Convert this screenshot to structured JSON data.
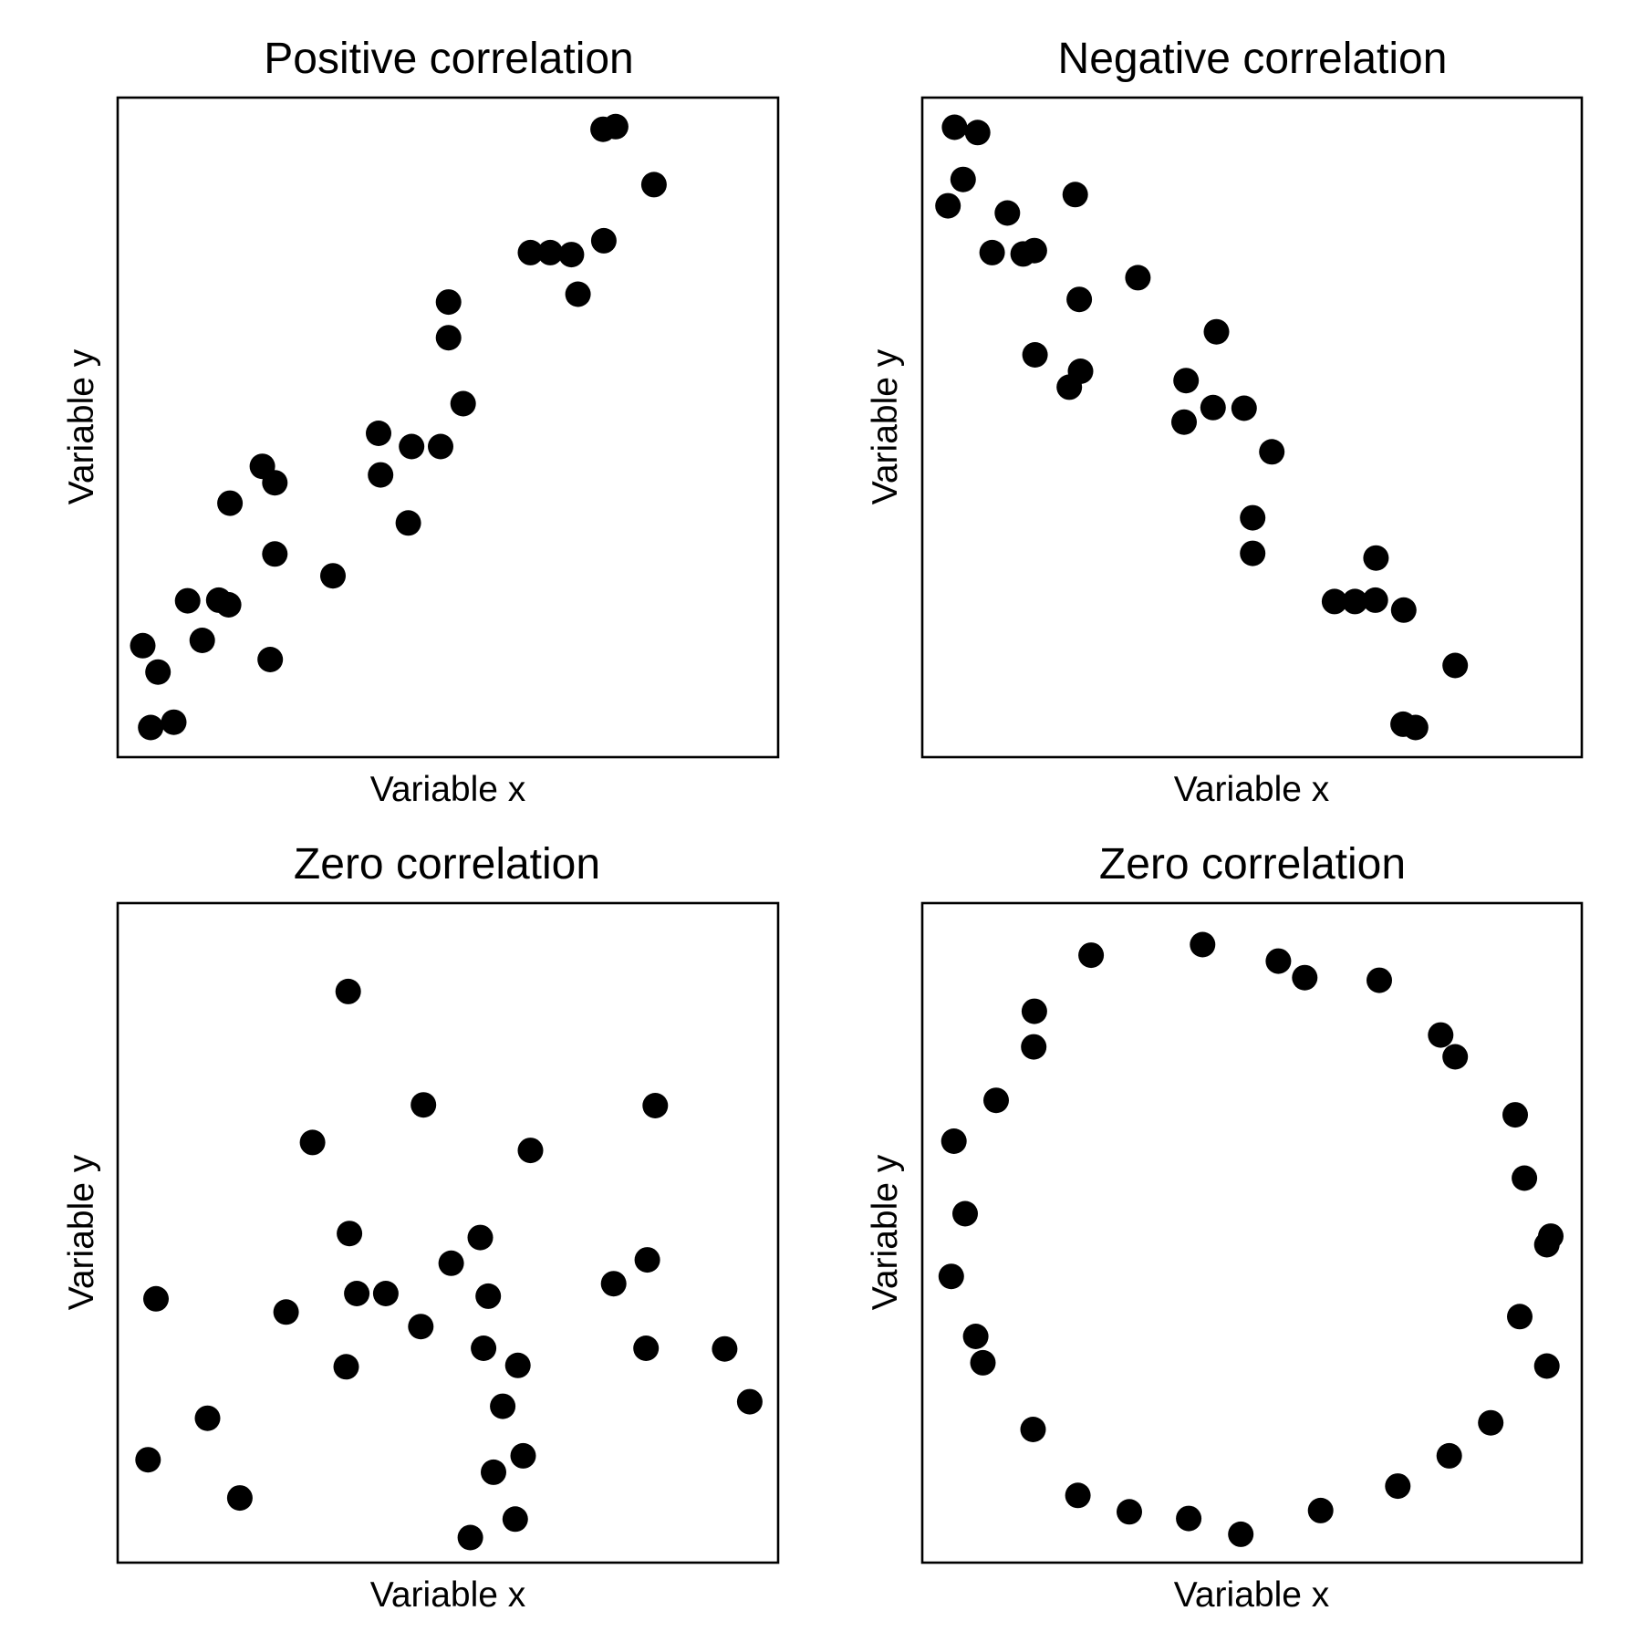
{
  "chart_data": [
    {
      "type": "scatter",
      "title": "Positive correlation",
      "xlabel": "Variable x",
      "ylabel": "Variable y",
      "xlim": [
        0,
        100
      ],
      "ylim": [
        0,
        100
      ],
      "grid": false,
      "ticks": false,
      "marker_color": "#000000",
      "points": [
        [
          3.8,
          16.9
        ],
        [
          6.1,
          12.9
        ],
        [
          5.0,
          4.5
        ],
        [
          8.5,
          5.3
        ],
        [
          10.6,
          23.7
        ],
        [
          12.8,
          17.7
        ],
        [
          15.3,
          23.8
        ],
        [
          16.8,
          23.1
        ],
        [
          17.0,
          38.5
        ],
        [
          21.9,
          44.1
        ],
        [
          23.8,
          41.6
        ],
        [
          23.8,
          30.8
        ],
        [
          23.1,
          14.8
        ],
        [
          32.6,
          27.5
        ],
        [
          39.5,
          49.1
        ],
        [
          39.8,
          42.8
        ],
        [
          44.5,
          47.1
        ],
        [
          48.9,
          47.1
        ],
        [
          44.0,
          35.5
        ],
        [
          52.3,
          53.6
        ],
        [
          50.1,
          63.6
        ],
        [
          50.1,
          69.0
        ],
        [
          62.5,
          76.5
        ],
        [
          65.5,
          76.5
        ],
        [
          68.7,
          76.2
        ],
        [
          69.7,
          70.2
        ],
        [
          73.6,
          78.3
        ],
        [
          81.2,
          86.8
        ],
        [
          73.5,
          95.2
        ],
        [
          75.4,
          95.6
        ]
      ]
    },
    {
      "type": "scatter",
      "title": "Negative correlation",
      "xlabel": "Variable x",
      "ylabel": "Variable y",
      "xlim": [
        0,
        100
      ],
      "ylim": [
        0,
        100
      ],
      "grid": false,
      "ticks": false,
      "marker_color": "#000000",
      "points": [
        [
          4.9,
          95.5
        ],
        [
          8.4,
          94.7
        ],
        [
          6.2,
          87.6
        ],
        [
          3.9,
          83.6
        ],
        [
          12.9,
          82.5
        ],
        [
          10.6,
          76.5
        ],
        [
          15.3,
          76.3
        ],
        [
          17.0,
          76.8
        ],
        [
          23.2,
          85.3
        ],
        [
          17.1,
          61.0
        ],
        [
          23.8,
          69.4
        ],
        [
          22.3,
          56.1
        ],
        [
          24.0,
          58.5
        ],
        [
          32.7,
          72.7
        ],
        [
          44.6,
          64.5
        ],
        [
          40.0,
          57.1
        ],
        [
          39.7,
          50.8
        ],
        [
          44.1,
          53.0
        ],
        [
          48.8,
          52.9
        ],
        [
          53.0,
          46.3
        ],
        [
          50.1,
          36.3
        ],
        [
          50.1,
          30.9
        ],
        [
          62.5,
          23.6
        ],
        [
          65.6,
          23.6
        ],
        [
          68.7,
          23.8
        ],
        [
          68.8,
          30.2
        ],
        [
          73.0,
          22.3
        ],
        [
          80.8,
          13.9
        ],
        [
          72.9,
          5.0
        ],
        [
          74.8,
          4.5
        ]
      ]
    },
    {
      "type": "scatter",
      "title": "Zero correlation",
      "xlabel": "Variable x",
      "ylabel": "Variable y",
      "xlim": [
        0,
        100
      ],
      "ylim": [
        0,
        100
      ],
      "grid": false,
      "ticks": false,
      "marker_color": "#000000",
      "points": [
        [
          34.9,
          86.6
        ],
        [
          46.3,
          69.4
        ],
        [
          29.5,
          63.7
        ],
        [
          81.4,
          69.3
        ],
        [
          62.5,
          62.5
        ],
        [
          35.1,
          49.9
        ],
        [
          5.8,
          40.0
        ],
        [
          25.5,
          38.0
        ],
        [
          36.2,
          40.8
        ],
        [
          40.6,
          40.8
        ],
        [
          50.5,
          45.4
        ],
        [
          54.9,
          49.3
        ],
        [
          56.1,
          40.4
        ],
        [
          80.2,
          45.9
        ],
        [
          75.1,
          42.3
        ],
        [
          45.9,
          35.8
        ],
        [
          55.4,
          32.5
        ],
        [
          34.6,
          29.7
        ],
        [
          60.6,
          29.9
        ],
        [
          80.0,
          32.5
        ],
        [
          91.9,
          32.4
        ],
        [
          95.7,
          24.4
        ],
        [
          13.6,
          21.9
        ],
        [
          4.6,
          15.6
        ],
        [
          58.3,
          23.7
        ],
        [
          61.4,
          16.2
        ],
        [
          56.9,
          13.7
        ],
        [
          18.5,
          9.8
        ],
        [
          53.4,
          3.8
        ],
        [
          60.2,
          6.6
        ]
      ]
    },
    {
      "type": "scatter",
      "title": "Zero correlation",
      "xlabel": "Variable x",
      "ylabel": "Variable y",
      "xlim": [
        0,
        100
      ],
      "ylim": [
        0,
        100
      ],
      "grid": false,
      "ticks": false,
      "marker_color": "#000000",
      "points": [
        [
          42.5,
          93.7
        ],
        [
          25.6,
          92.1
        ],
        [
          54.0,
          91.2
        ],
        [
          58.0,
          88.7
        ],
        [
          69.3,
          88.3
        ],
        [
          17.0,
          83.6
        ],
        [
          16.9,
          78.2
        ],
        [
          78.6,
          80.0
        ],
        [
          80.8,
          76.7
        ],
        [
          11.2,
          70.1
        ],
        [
          89.9,
          67.9
        ],
        [
          4.8,
          63.9
        ],
        [
          91.3,
          58.3
        ],
        [
          6.5,
          52.9
        ],
        [
          95.3,
          49.5
        ],
        [
          94.7,
          48.2
        ],
        [
          4.4,
          43.4
        ],
        [
          90.6,
          37.3
        ],
        [
          8.1,
          34.3
        ],
        [
          9.2,
          30.3
        ],
        [
          94.7,
          29.8
        ],
        [
          16.8,
          20.2
        ],
        [
          86.2,
          21.2
        ],
        [
          79.9,
          16.2
        ],
        [
          23.6,
          10.2
        ],
        [
          31.4,
          7.7
        ],
        [
          72.1,
          11.6
        ],
        [
          40.4,
          6.7
        ],
        [
          60.4,
          7.9
        ],
        [
          48.3,
          4.3
        ]
      ]
    }
  ]
}
